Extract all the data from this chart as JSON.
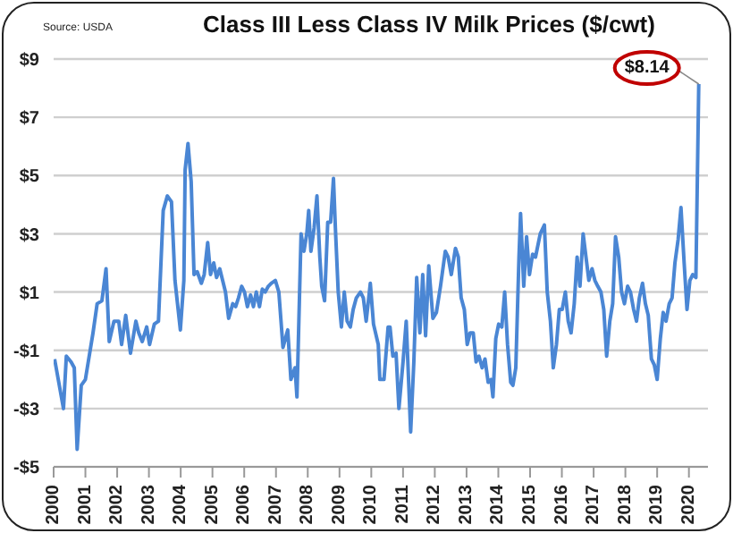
{
  "chart_data": {
    "type": "line",
    "title": "Class III Less Class IV Milk Prices ($/cwt)",
    "annotations": [
      "Source: USDA",
      {
        "text": "$8.14",
        "x": 2020.31,
        "y": 8.14
      }
    ],
    "x": [
      2000.03,
      2000.31,
      2000.4,
      2000.55,
      2000.65,
      2000.74,
      2000.87,
      2001.0,
      2001.24,
      2001.37,
      2001.52,
      2001.65,
      2001.75,
      2001.9,
      2002.05,
      2002.14,
      2002.27,
      2002.42,
      2002.59,
      2002.68,
      2002.79,
      2002.93,
      2003.02,
      2003.17,
      2003.3,
      2003.45,
      2003.58,
      2003.71,
      2003.82,
      2003.99,
      2004.1,
      2004.14,
      2004.23,
      2004.33,
      2004.42,
      2004.52,
      2004.65,
      2004.74,
      2004.85,
      2004.94,
      2005.04,
      2005.13,
      2005.23,
      2005.32,
      2005.41,
      2005.51,
      2005.64,
      2005.73,
      2005.82,
      2005.92,
      2006.01,
      2006.1,
      2006.2,
      2006.29,
      2006.38,
      2006.48,
      2006.57,
      2006.66,
      2006.76,
      2006.85,
      2006.98,
      2007.09,
      2007.22,
      2007.37,
      2007.47,
      2007.6,
      2007.66,
      2007.79,
      2007.88,
      2007.97,
      2008.03,
      2008.1,
      2008.2,
      2008.29,
      2008.38,
      2008.44,
      2008.53,
      2008.63,
      2008.72,
      2008.81,
      2008.87,
      2008.96,
      2009.06,
      2009.15,
      2009.24,
      2009.34,
      2009.43,
      2009.53,
      2009.66,
      2009.75,
      2009.84,
      2009.97,
      2010.07,
      2010.22,
      2010.27,
      2010.4,
      2010.53,
      2010.59,
      2010.68,
      2010.78,
      2010.87,
      2011.0,
      2011.1,
      2011.24,
      2011.34,
      2011.43,
      2011.53,
      2011.62,
      2011.71,
      2011.81,
      2011.94,
      2012.05,
      2012.18,
      2012.33,
      2012.42,
      2012.52,
      2012.65,
      2012.74,
      2012.83,
      2012.93,
      2013.02,
      2013.11,
      2013.21,
      2013.3,
      2013.39,
      2013.49,
      2013.58,
      2013.68,
      2013.77,
      2013.83,
      2013.92,
      2014.01,
      2014.11,
      2014.2,
      2014.29,
      2014.39,
      2014.46,
      2014.55,
      2014.65,
      2014.7,
      2014.8,
      2014.89,
      2014.98,
      2015.08,
      2015.17,
      2015.32,
      2015.45,
      2015.54,
      2015.64,
      2015.73,
      2015.83,
      2015.92,
      2016.01,
      2016.11,
      2016.2,
      2016.29,
      2016.39,
      2016.48,
      2016.57,
      2016.67,
      2016.76,
      2016.85,
      2016.95,
      2017.04,
      2017.13,
      2017.23,
      2017.32,
      2017.41,
      2017.51,
      2017.6,
      2017.69,
      2017.79,
      2017.88,
      2017.97,
      2018.07,
      2018.16,
      2018.26,
      2018.35,
      2018.44,
      2018.54,
      2018.63,
      2018.72,
      2018.82,
      2018.91,
      2019.0,
      2019.1,
      2019.19,
      2019.28,
      2019.38,
      2019.47,
      2019.56,
      2019.66,
      2019.75,
      2019.85,
      2019.94,
      2020.03,
      2020.12,
      2020.22,
      2020.31
    ],
    "series": [
      {
        "color": "#4a86d4",
        "values": [
          -1.3,
          -3.0,
          -1.2,
          -1.4,
          -1.6,
          -4.4,
          -2.2,
          -2.0,
          -0.4,
          0.6,
          0.7,
          1.8,
          -0.7,
          0.0,
          0.0,
          -0.8,
          0.2,
          -1.1,
          0.0,
          -0.4,
          -0.7,
          -0.2,
          -0.8,
          -0.1,
          0.0,
          3.8,
          4.3,
          4.1,
          1.4,
          -0.3,
          1.4,
          5.2,
          6.1,
          4.8,
          1.6,
          1.7,
          1.3,
          1.6,
          2.7,
          1.6,
          2.0,
          1.5,
          1.8,
          1.4,
          1.0,
          0.1,
          0.6,
          0.5,
          0.8,
          1.2,
          1.0,
          0.5,
          0.9,
          0.5,
          1.0,
          0.5,
          1.1,
          1.0,
          1.2,
          1.3,
          1.4,
          1.0,
          -0.9,
          -0.3,
          -2.0,
          -1.6,
          -2.6,
          3.0,
          2.4,
          3.0,
          3.8,
          2.4,
          3.2,
          4.3,
          2.2,
          1.2,
          0.7,
          3.4,
          3.4,
          4.9,
          3.2,
          1.0,
          -0.2,
          1.0,
          0.0,
          -0.2,
          0.4,
          0.8,
          1.0,
          0.8,
          0.0,
          1.3,
          -0.1,
          -0.8,
          -2.0,
          -2.0,
          -0.2,
          -0.2,
          -1.2,
          -1.1,
          -3.0,
          -1.4,
          0.0,
          -3.8,
          -1.4,
          1.5,
          -0.4,
          1.6,
          -0.5,
          1.9,
          0.1,
          0.3,
          1.2,
          2.4,
          2.2,
          1.6,
          2.5,
          2.2,
          0.8,
          0.4,
          -0.8,
          -0.4,
          -0.4,
          -1.4,
          -1.2,
          -1.6,
          -1.3,
          -2.1,
          -2.0,
          -2.6,
          -0.6,
          -0.1,
          -0.2,
          1.0,
          -0.8,
          -2.1,
          -2.2,
          -1.6,
          2.2,
          3.7,
          1.2,
          2.9,
          1.6,
          2.3,
          2.2,
          3.0,
          3.3,
          1.0,
          0.0,
          -1.6,
          -0.8,
          0.4,
          0.4,
          1.0,
          0.0,
          -0.4,
          0.6,
          2.2,
          1.2,
          3.0,
          2.2,
          1.4,
          1.8,
          1.4,
          1.2,
          1.0,
          0.4,
          -1.2,
          0.0,
          0.6,
          2.9,
          2.2,
          1.0,
          0.6,
          1.2,
          1.0,
          0.4,
          0.0,
          0.8,
          1.3,
          0.6,
          0.2,
          -1.3,
          -1.5,
          -2.0,
          -0.6,
          0.3,
          0.0,
          0.6,
          0.8,
          2.0,
          2.8,
          3.9,
          2.0,
          0.4,
          1.4,
          1.6,
          1.5,
          8.14
        ]
      }
    ],
    "xlim": [
      2000,
      2020.6
    ],
    "xticks": [
      2000,
      2001,
      2002,
      2003,
      2004,
      2005,
      2006,
      2007,
      2008,
      2009,
      2010,
      2011,
      2012,
      2013,
      2014,
      2015,
      2016,
      2017,
      2018,
      2019,
      2020
    ],
    "ylim": [
      -5,
      9
    ],
    "yticks": [
      {
        "value": -5,
        "label": "-$5"
      },
      {
        "value": -3,
        "label": "-$3"
      },
      {
        "value": -1,
        "label": "-$1"
      },
      {
        "value": 1,
        "label": "$1"
      },
      {
        "value": 3,
        "label": "$3"
      },
      {
        "value": 5,
        "label": "$5"
      },
      {
        "value": 7,
        "label": "$7"
      },
      {
        "value": 9,
        "label": "$9"
      }
    ],
    "grid": "y",
    "legend": false,
    "marker": "none",
    "line_style": "solid"
  }
}
